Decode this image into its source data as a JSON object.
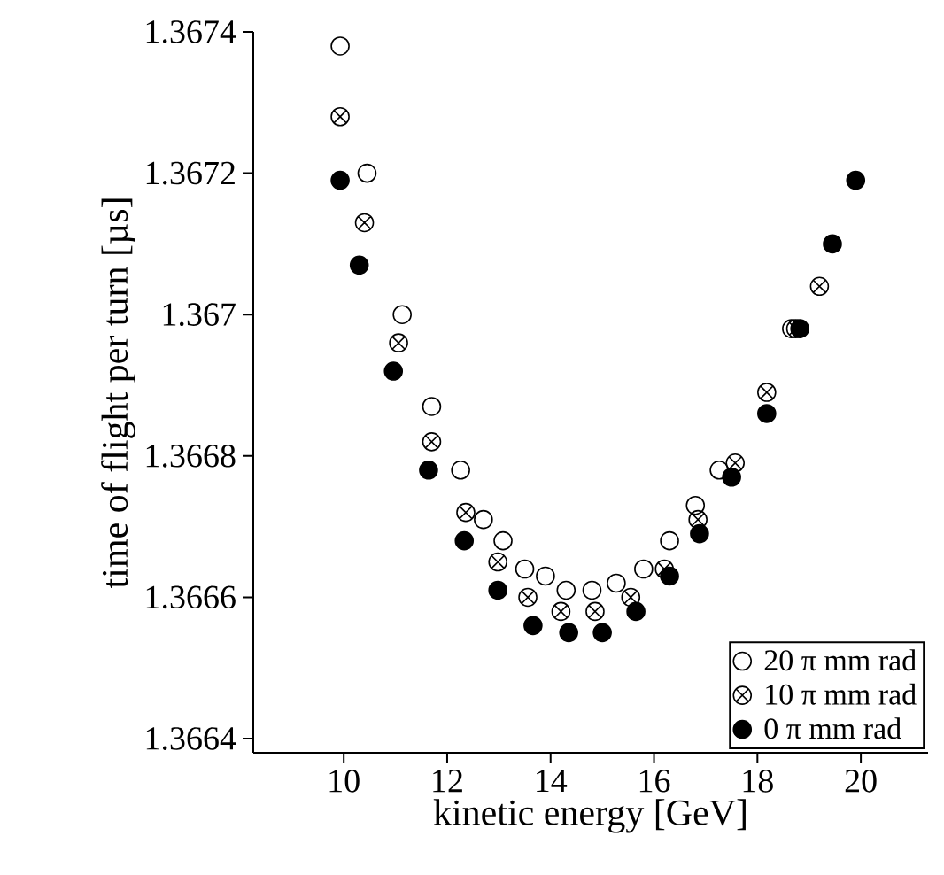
{
  "chart_data": {
    "type": "scatter",
    "xlabel": "kinetic energy [GeV]",
    "ylabel": "time of flight per turn [µs]",
    "xlim": [
      8.25,
      21.3
    ],
    "ylim": [
      1.36638,
      1.3674
    ],
    "xticks": [
      10,
      12,
      14,
      16,
      18,
      20
    ],
    "yticks": [
      1.3664,
      1.3666,
      1.3668,
      1.367,
      1.3672,
      1.3674
    ],
    "grid": false,
    "legend": "bottom right",
    "series": [
      {
        "name": "20 π mm rad",
        "color": "#000000",
        "marker": "circle",
        "x": [
          9.93,
          10.45,
          11.13,
          11.7,
          12.26,
          12.7,
          13.08,
          13.5,
          13.9,
          14.3,
          14.8,
          15.27,
          15.8,
          16.3,
          16.8,
          17.26,
          18.66
        ],
        "values": [
          1.36738,
          1.3672,
          1.367,
          1.36687,
          1.36678,
          1.36671,
          1.36668,
          1.36664,
          1.36663,
          1.36661,
          1.36661,
          1.36662,
          1.36664,
          1.36668,
          1.36673,
          1.36678,
          1.36698
        ]
      },
      {
        "name": "10 π mm rad",
        "color": "#000000",
        "marker": "cross",
        "x": [
          9.93,
          10.4,
          11.06,
          11.7,
          12.36,
          12.98,
          13.56,
          14.2,
          14.86,
          15.55,
          16.2,
          16.85,
          17.57,
          18.18,
          18.74,
          19.2
        ],
        "values": [
          1.36728,
          1.36713,
          1.36696,
          1.36682,
          1.36672,
          1.36665,
          1.3666,
          1.36658,
          1.36658,
          1.3666,
          1.36664,
          1.36671,
          1.36679,
          1.36689,
          1.36698,
          1.36704
        ]
      },
      {
        "name": "0 π mm rad",
        "color": "#000000",
        "x": [
          9.93,
          10.3,
          10.96,
          11.64,
          12.33,
          12.98,
          13.66,
          14.35,
          15.0,
          15.65,
          16.3,
          16.88,
          17.5,
          18.18,
          18.82,
          19.45,
          19.9
        ],
        "values": [
          1.36719,
          1.36707,
          1.36692,
          1.36678,
          1.36668,
          1.36661,
          1.36656,
          1.36655,
          1.36655,
          1.36658,
          1.36663,
          1.36669,
          1.36677,
          1.36686,
          1.36698,
          1.3671,
          1.36719
        ]
      }
    ]
  }
}
